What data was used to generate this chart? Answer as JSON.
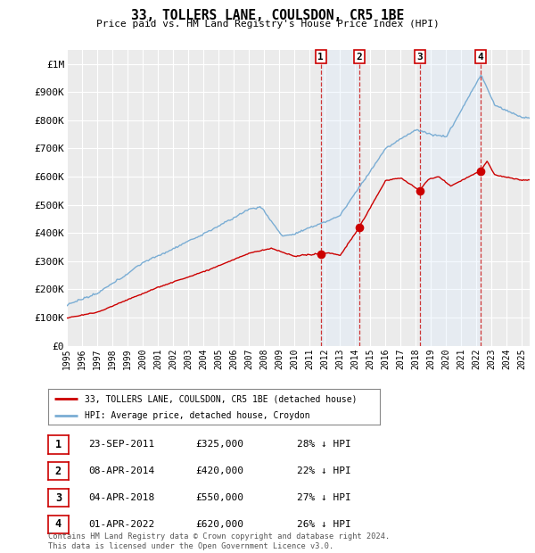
{
  "title": "33, TOLLERS LANE, COULSDON, CR5 1BE",
  "subtitle": "Price paid vs. HM Land Registry's House Price Index (HPI)",
  "ylabel_ticks": [
    "£0",
    "£100K",
    "£200K",
    "£300K",
    "£400K",
    "£500K",
    "£600K",
    "£700K",
    "£800K",
    "£900K",
    "£1M"
  ],
  "ytick_values": [
    0,
    100000,
    200000,
    300000,
    400000,
    500000,
    600000,
    700000,
    800000,
    900000,
    1000000
  ],
  "ylim": [
    0,
    1050000
  ],
  "xlim_start": 1995.0,
  "xlim_end": 2025.5,
  "background_color": "#ffffff",
  "plot_bg_color": "#ebebeb",
  "grid_color": "#ffffff",
  "hpi_line_color": "#7aadd4",
  "price_line_color": "#cc0000",
  "transaction_marker_color": "#cc0000",
  "dashed_line_color": "#cc2222",
  "shade_color": "#ddeeff",
  "transactions": [
    {
      "num": 1,
      "date_str": "23-SEP-2011",
      "date_x": 2011.73,
      "price": 325000,
      "pct": "28%",
      "dir": "↓"
    },
    {
      "num": 2,
      "date_str": "08-APR-2014",
      "date_x": 2014.27,
      "price": 420000,
      "pct": "22%",
      "dir": "↓"
    },
    {
      "num": 3,
      "date_str": "04-APR-2018",
      "date_x": 2018.26,
      "price": 550000,
      "pct": "27%",
      "dir": "↓"
    },
    {
      "num": 4,
      "date_str": "01-APR-2022",
      "date_x": 2022.25,
      "price": 620000,
      "pct": "26%",
      "dir": "↓"
    }
  ],
  "legend_label_price": "33, TOLLERS LANE, COULSDON, CR5 1BE (detached house)",
  "legend_label_hpi": "HPI: Average price, detached house, Croydon",
  "footer_line1": "Contains HM Land Registry data © Crown copyright and database right 2024.",
  "footer_line2": "This data is licensed under the Open Government Licence v3.0.",
  "xtick_years": [
    1995,
    1996,
    1997,
    1998,
    1999,
    2000,
    2001,
    2002,
    2003,
    2004,
    2005,
    2006,
    2007,
    2008,
    2009,
    2010,
    2011,
    2012,
    2013,
    2014,
    2015,
    2016,
    2017,
    2018,
    2019,
    2020,
    2021,
    2022,
    2023,
    2024,
    2025
  ]
}
